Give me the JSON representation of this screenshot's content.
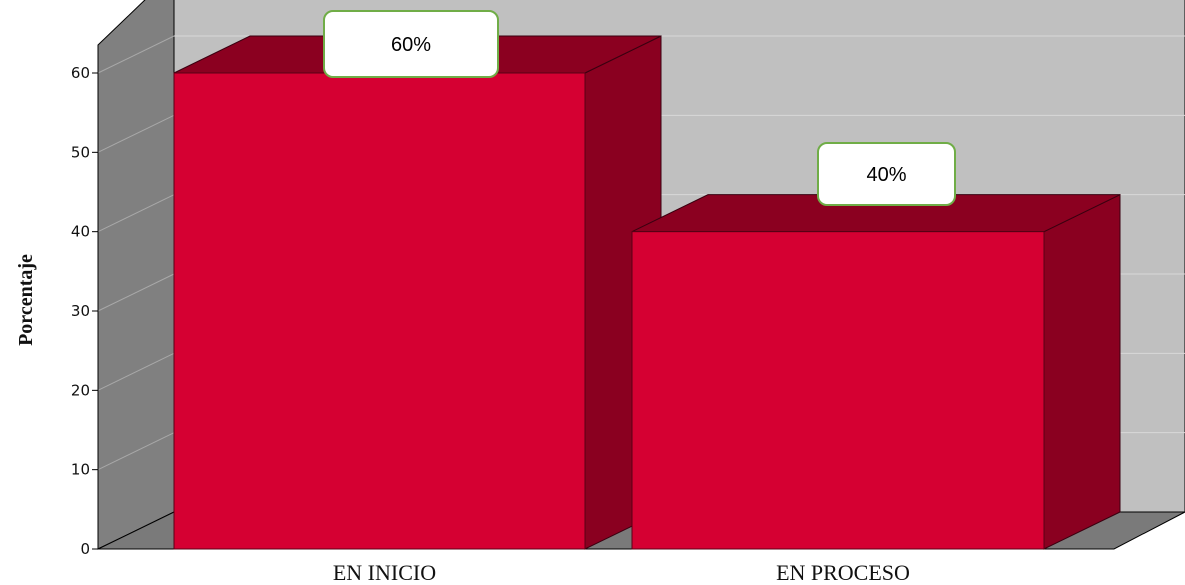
{
  "chart_data": {
    "type": "bar",
    "title": "",
    "xlabel": "",
    "ylabel": "Porcentaje",
    "categories": [
      "EN INICIO",
      "EN PROCESO"
    ],
    "values": [
      60,
      40
    ],
    "data_labels": [
      "60%",
      "40%"
    ],
    "ylim": [
      0,
      60
    ],
    "yticks": [
      0,
      10,
      20,
      30,
      40,
      50,
      60
    ],
    "grid": true,
    "style": "3d"
  },
  "colors": {
    "bar_front": "#d50032",
    "bar_top": "#8b0020",
    "bar_side": "#8a0020",
    "back_wall": "#c0c0c0",
    "side_wall": "#808080",
    "floor": "#7a7a7a",
    "callout_border": "#70ad47",
    "callout_fill": "#ffffff"
  }
}
